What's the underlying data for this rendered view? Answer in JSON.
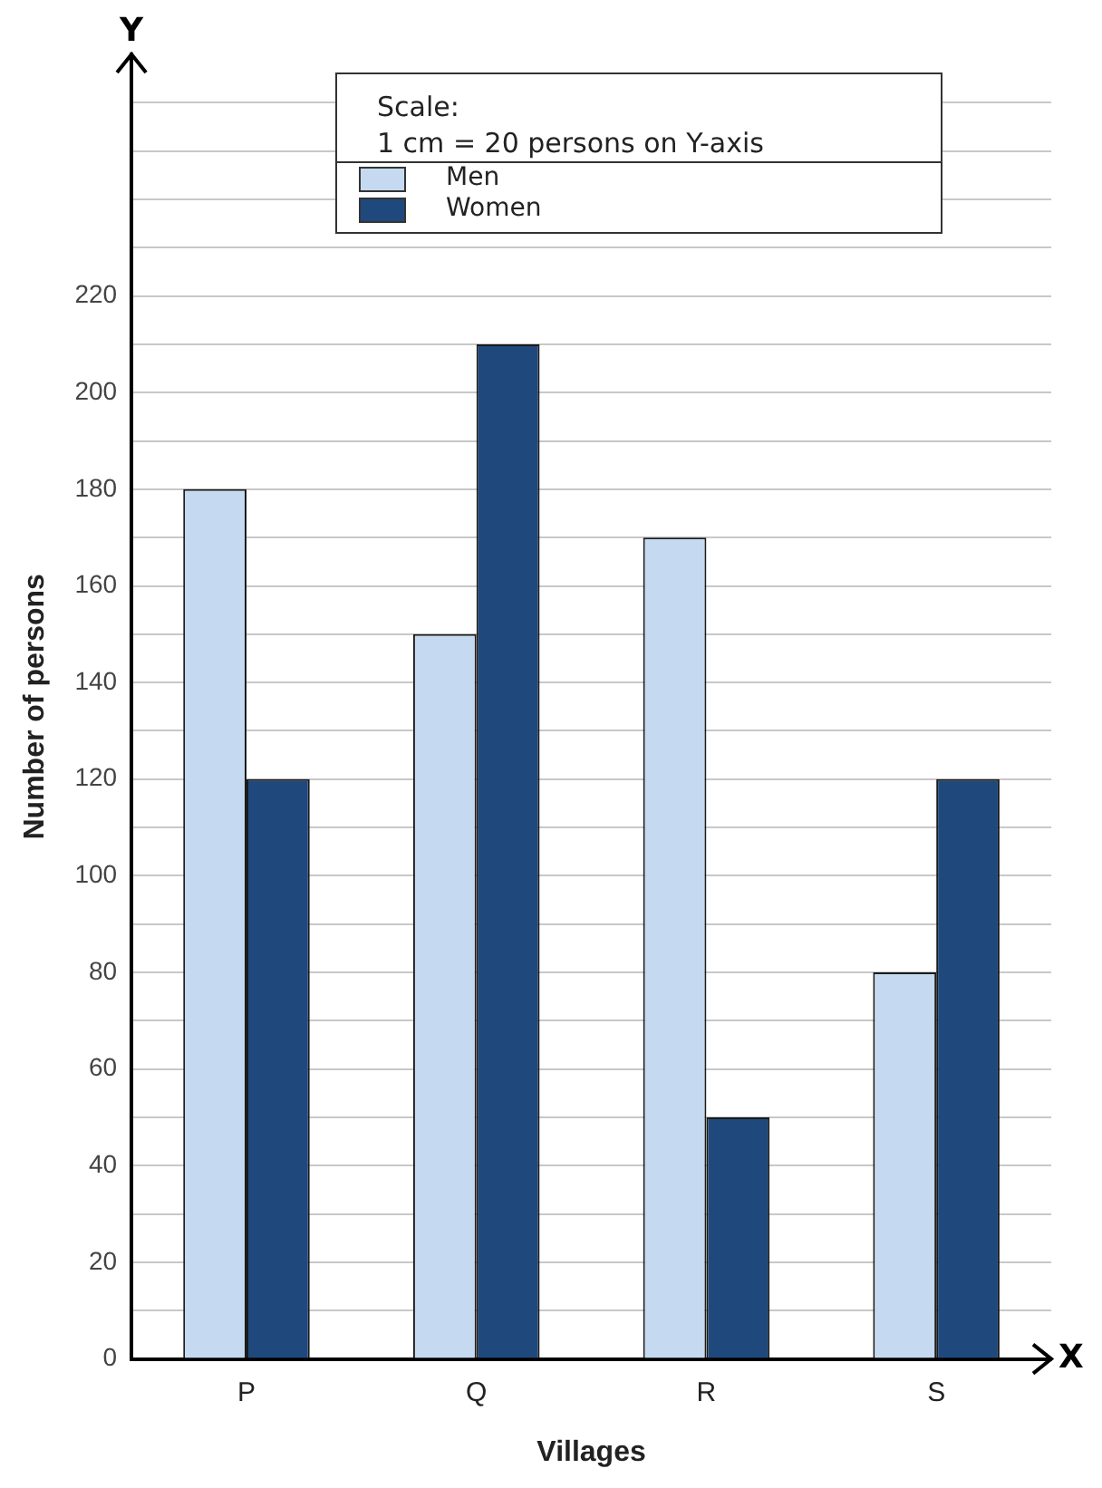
{
  "chart_data": {
    "type": "bar",
    "xlabel": "Villages",
    "ylabel": "Number of persons",
    "categories": [
      "P",
      "Q",
      "R",
      "S"
    ],
    "series": [
      {
        "name": "Men",
        "color": "#c5d9f1",
        "values": [
          180,
          150,
          170,
          80
        ]
      },
      {
        "name": "Women",
        "color": "#1f497d",
        "values": [
          120,
          210,
          50,
          120
        ]
      }
    ],
    "ylim": [
      0,
      270
    ],
    "yticks": [
      0,
      20,
      40,
      60,
      80,
      100,
      120,
      140,
      160,
      180,
      200,
      220,
      {
        "value": 10,
        "label": null
      },
      {
        "value": 30,
        "label": null
      },
      {
        "value": 50,
        "label": null
      },
      {
        "value": 70,
        "label": null
      },
      {
        "value": 90,
        "label": null
      },
      {
        "value": 110,
        "label": null
      },
      {
        "value": 130,
        "label": null
      },
      {
        "value": 150,
        "label": null
      },
      {
        "value": 170,
        "label": null
      },
      {
        "value": 190,
        "label": null
      },
      {
        "value": 210,
        "label": null
      },
      {
        "value": 230,
        "label": null
      },
      {
        "value": 240,
        "label": null
      },
      {
        "value": 250,
        "label": null
      },
      {
        "value": 260,
        "label": null
      }
    ],
    "grid": "y",
    "legend": "top",
    "annotations": [
      "Scale:",
      "1 cm = 20 persons on Y-axis",
      "Y",
      "X"
    ]
  }
}
